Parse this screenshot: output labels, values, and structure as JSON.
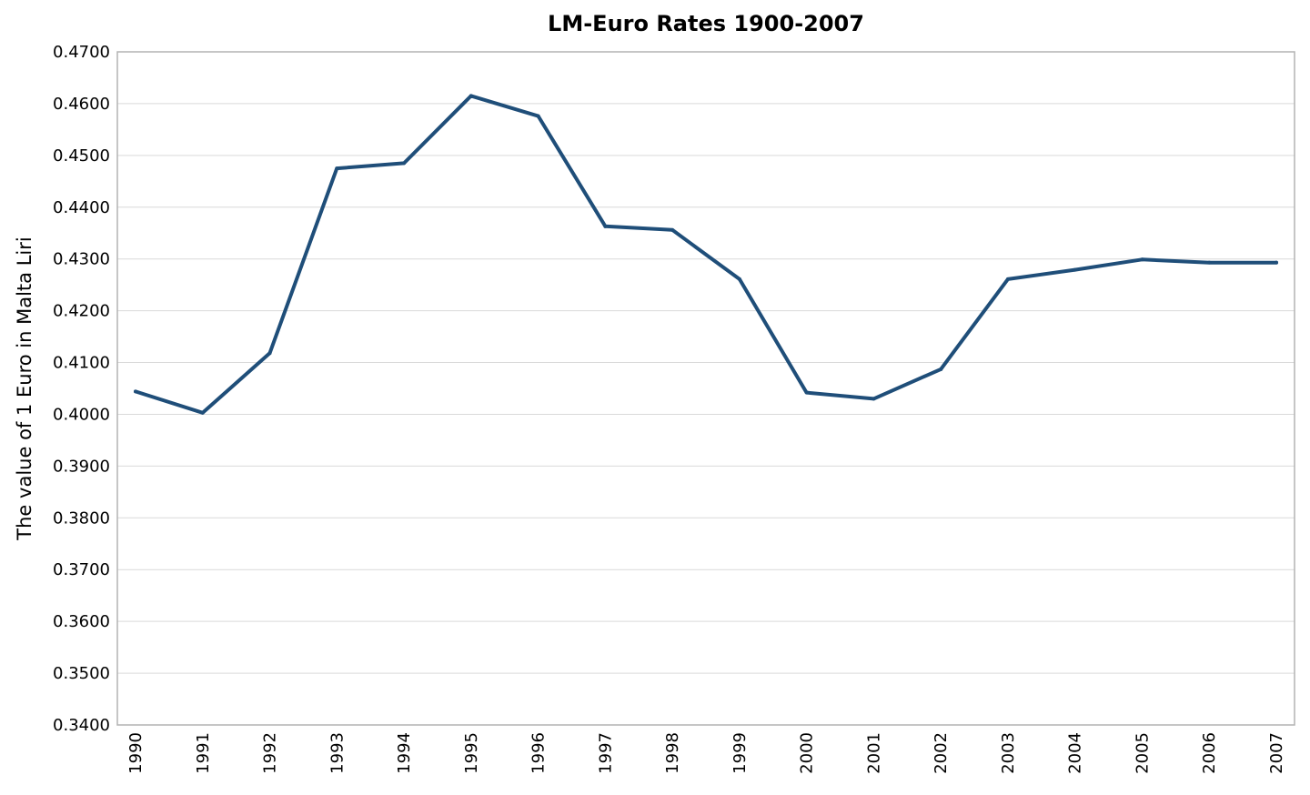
{
  "chart_data": {
    "type": "line",
    "title": "LM-Euro Rates 1900-2007",
    "xlabel": "",
    "ylabel": "The value of 1 Euro in Malta Liri",
    "ylim": [
      0.34,
      0.47
    ],
    "ytick_step": 0.01,
    "ytick_decimals": 4,
    "grid": true,
    "legend": "none",
    "categories": [
      "1990",
      "1991",
      "1992",
      "1993",
      "1994",
      "1995",
      "1996",
      "1997",
      "1998",
      "1999",
      "2000",
      "2001",
      "2002",
      "2003",
      "2004",
      "2005",
      "2006",
      "2007"
    ],
    "series": [
      {
        "color": "#1f4e79",
        "values": [
          0.4044,
          0.4003,
          0.4118,
          0.4475,
          0.4485,
          0.4615,
          0.4576,
          0.4363,
          0.4356,
          0.4261,
          0.4042,
          0.403,
          0.4087,
          0.4261,
          0.4279,
          0.4299,
          0.4293,
          0.4293
        ]
      }
    ]
  }
}
